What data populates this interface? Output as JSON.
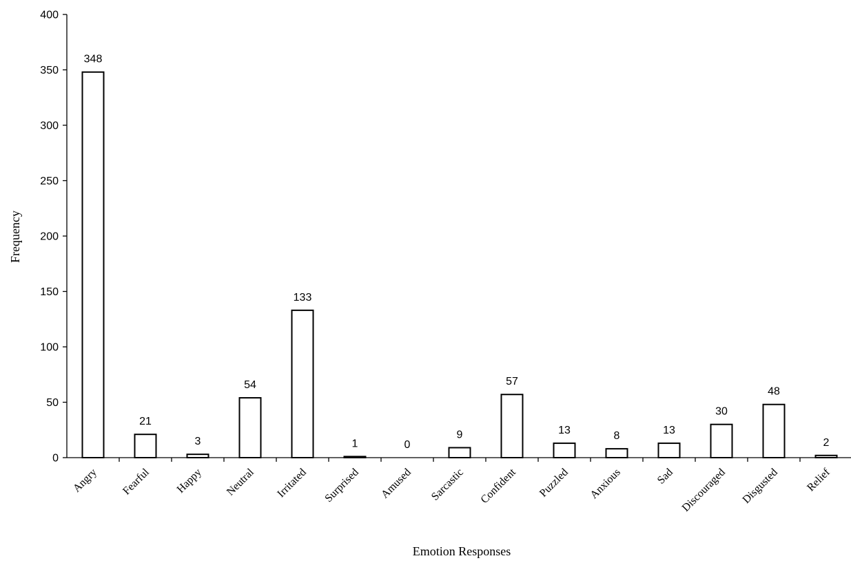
{
  "chart_data": {
    "type": "bar",
    "title": "",
    "xlabel": "Emotion Responses",
    "ylabel": "Frequency",
    "ylim": [
      0,
      400
    ],
    "ytick_step": 50,
    "yticks": [
      "0",
      "50",
      "100",
      "150",
      "200",
      "250",
      "300",
      "350",
      "400"
    ],
    "grid": false,
    "categories": [
      "Angry",
      "Fearful",
      "Happy",
      "Neutral",
      "Irritated",
      "Surprised",
      "Amused",
      "Sarcastic",
      "Confident",
      "Puzzled",
      "Anxious",
      "Sad",
      "Discouraged",
      "Disgusted",
      "Relief"
    ],
    "values": [
      348,
      21,
      3,
      54,
      133,
      1,
      0,
      9,
      57,
      13,
      8,
      13,
      30,
      48,
      2
    ],
    "data_labels": [
      "348",
      "21",
      "3",
      "54",
      "133",
      "1",
      "0",
      "9",
      "57",
      "13",
      "8",
      "13",
      "30",
      "48",
      "2"
    ],
    "bar_fill": "#ffffff",
    "bar_stroke": "#000000"
  }
}
